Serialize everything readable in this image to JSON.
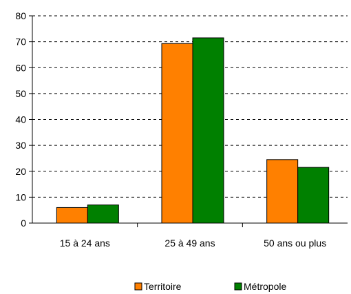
{
  "chart_data": {
    "type": "bar",
    "categories": [
      "15 à 24 ans",
      "25 à 49 ans",
      "50 ans ou plus"
    ],
    "series": [
      {
        "name": "Territoire",
        "values": [
          6,
          69.3,
          24.5
        ],
        "color": "#ff8000"
      },
      {
        "name": "Métropole",
        "values": [
          7,
          71.5,
          21.5
        ],
        "color": "#008000"
      }
    ],
    "y_ticks": [
      0,
      10,
      20,
      30,
      40,
      50,
      60,
      70,
      80
    ],
    "ylim": [
      0,
      80
    ],
    "grid": true,
    "grid_style": "dashed",
    "legend_position": "bottom"
  }
}
